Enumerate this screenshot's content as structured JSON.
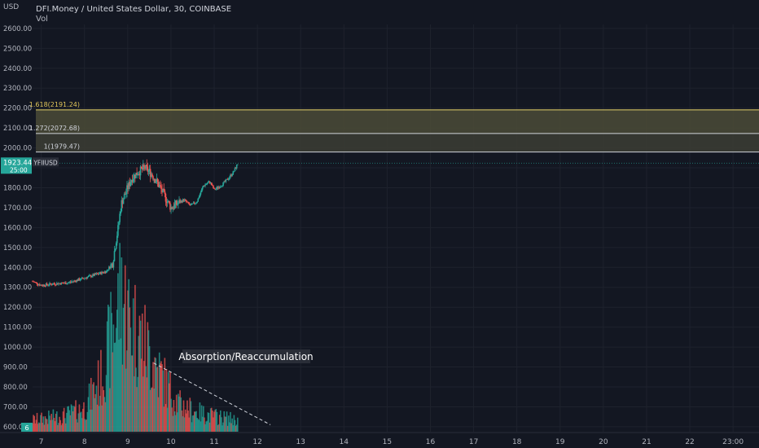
{
  "header": {
    "symbol_line": "DFI.Money / United States Dollar, 30, COINBASE",
    "indicator": "Vol",
    "unit": "USD"
  },
  "colors": {
    "background": "#131722",
    "grid": "#1e222d",
    "up": "#26a69a",
    "down": "#ef5350",
    "fib_line": "#d1d4dc",
    "fib_zone": "#4b4b37",
    "fib_618_text": "#e0c55a",
    "price_tag": "#26a69a"
  },
  "chart_data": {
    "type": "candlestick",
    "title": "DFI.Money / United States Dollar, 30, COINBASE",
    "ylabel": "USD",
    "ylim": [
      575,
      2620
    ],
    "y_ticks": [
      600,
      700,
      800,
      900,
      1000,
      1100,
      1200,
      1300,
      1400,
      1500,
      1600,
      1700,
      1800,
      1900,
      2000,
      2100,
      2200,
      2300,
      2400,
      2500,
      2600
    ],
    "xlim": [
      6.8,
      23.6
    ],
    "x_ticks": [
      {
        "value": 7,
        "label": "7"
      },
      {
        "value": 8,
        "label": "8"
      },
      {
        "value": 9,
        "label": "9"
      },
      {
        "value": 10,
        "label": "10"
      },
      {
        "value": 11,
        "label": "11"
      },
      {
        "value": 12,
        "label": "12"
      },
      {
        "value": 13,
        "label": "13"
      },
      {
        "value": 14,
        "label": "14"
      },
      {
        "value": 15,
        "label": "15"
      },
      {
        "value": 16,
        "label": "16"
      },
      {
        "value": 17,
        "label": "17"
      },
      {
        "value": 18,
        "label": "18"
      },
      {
        "value": 19,
        "label": "19"
      },
      {
        "value": 20,
        "label": "20"
      },
      {
        "value": 21,
        "label": "21"
      },
      {
        "value": 22,
        "label": "22"
      },
      {
        "value": 23,
        "label": "23:00"
      }
    ],
    "price_path": [
      [
        6.8,
        1330
      ],
      [
        7.0,
        1310
      ],
      [
        7.3,
        1318
      ],
      [
        7.6,
        1322
      ],
      [
        7.9,
        1340
      ],
      [
        8.2,
        1360
      ],
      [
        8.5,
        1380
      ],
      [
        8.65,
        1420
      ],
      [
        8.72,
        1520
      ],
      [
        8.78,
        1600
      ],
      [
        8.85,
        1720
      ],
      [
        9.0,
        1800
      ],
      [
        9.1,
        1850
      ],
      [
        9.25,
        1880
      ],
      [
        9.4,
        1900
      ],
      [
        9.55,
        1870
      ],
      [
        9.7,
        1820
      ],
      [
        9.85,
        1760
      ],
      [
        10.0,
        1700
      ],
      [
        10.15,
        1720
      ],
      [
        10.3,
        1740
      ],
      [
        10.45,
        1710
      ],
      [
        10.6,
        1730
      ],
      [
        10.75,
        1810
      ],
      [
        10.9,
        1830
      ],
      [
        11.0,
        1790
      ],
      [
        11.15,
        1810
      ],
      [
        11.3,
        1840
      ],
      [
        11.45,
        1880
      ],
      [
        11.55,
        1923
      ]
    ],
    "volume_path": [
      [
        6.8,
        15
      ],
      [
        7.5,
        20
      ],
      [
        8.0,
        30
      ],
      [
        8.4,
        70
      ],
      [
        8.7,
        140
      ],
      [
        8.85,
        180
      ],
      [
        9.0,
        150
      ],
      [
        9.3,
        120
      ],
      [
        9.6,
        90
      ],
      [
        9.9,
        60
      ],
      [
        10.2,
        35
      ],
      [
        10.6,
        25
      ],
      [
        11.0,
        20
      ],
      [
        11.55,
        15
      ]
    ],
    "fib_levels": [
      {
        "ratio": "1",
        "price": 1979.47,
        "label": "1(1979.47)"
      },
      {
        "ratio": "1.272",
        "price": 2072.68,
        "label": "1.272(2072.68)"
      },
      {
        "ratio": "1.618",
        "price": 2191.24,
        "label": "1.618(2191.24)"
      }
    ],
    "current_price": {
      "value": 1923.44,
      "label": "1923.44",
      "countdown": "25:00",
      "symbol": "YFIIUSD"
    },
    "volume_tag": "6",
    "annotation": {
      "text": "Absorption/Reaccumulation",
      "from": [
        9.6,
        920
      ],
      "to": [
        12.3,
        610
      ]
    },
    "grid": true,
    "legend": "none"
  }
}
